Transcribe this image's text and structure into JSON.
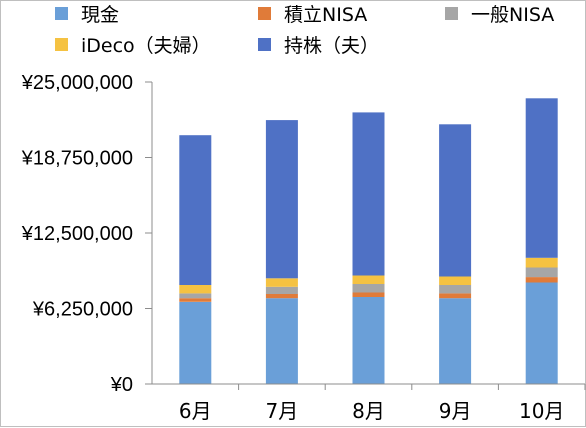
{
  "chart_data": {
    "type": "bar",
    "stacked": true,
    "categories": [
      "6月",
      "7月",
      "8月",
      "9月",
      "10月"
    ],
    "series": [
      {
        "name": "現金",
        "color": "#6a9fd8",
        "values": [
          6800000,
          7100000,
          7200000,
          7100000,
          8400000
        ]
      },
      {
        "name": "積立NISA",
        "color": "#e07b39",
        "values": [
          300000,
          350000,
          380000,
          400000,
          450000
        ]
      },
      {
        "name": "一般NISA",
        "color": "#a6a6a6",
        "values": [
          400000,
          600000,
          700000,
          700000,
          800000
        ]
      },
      {
        "name": "iDeco（夫婦）",
        "color": "#f5c242",
        "values": [
          700000,
          700000,
          700000,
          700000,
          800000
        ]
      },
      {
        "name": "持株（夫）",
        "color": "#4f71c5",
        "values": [
          12400000,
          13100000,
          13500000,
          12600000,
          13200000
        ]
      }
    ],
    "ylim": [
      0,
      25000000
    ],
    "yticks": [
      0,
      6250000,
      12500000,
      18750000,
      25000000
    ],
    "ytick_labels": [
      "¥0",
      "¥6,250,000",
      "¥12,500,000",
      "¥18,750,000",
      "¥25,000,000"
    ],
    "grid": false,
    "legend_position": "top"
  }
}
